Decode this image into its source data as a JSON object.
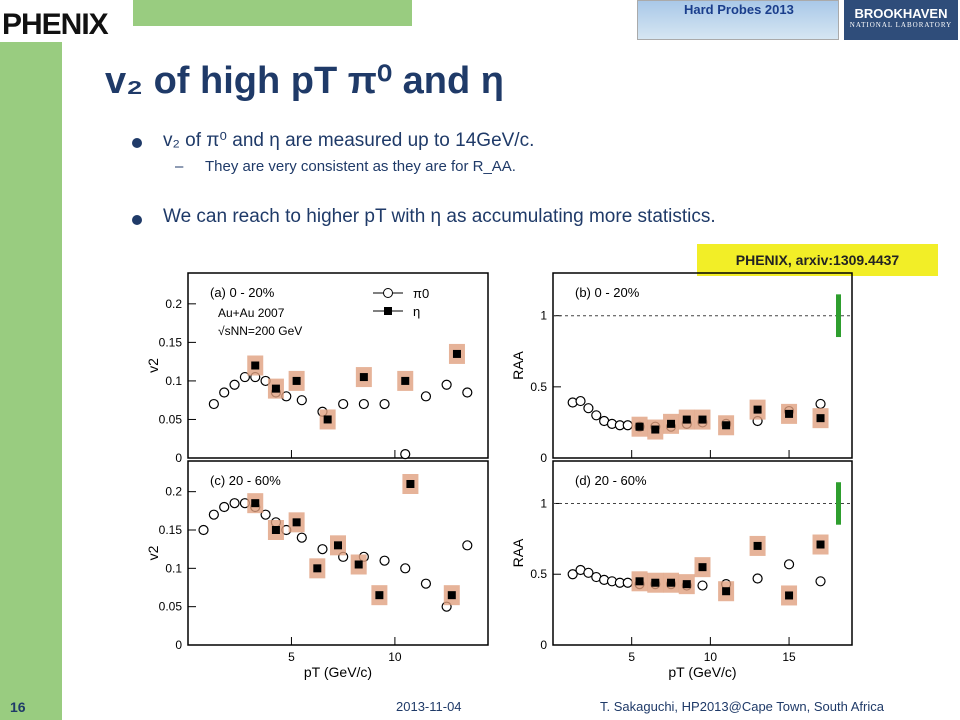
{
  "header": {
    "logo_text": "PHENIX",
    "conference_logo": "Hard Probes 2013",
    "lab_logo_line1": "BROOKHAVEN",
    "lab_logo_line2": "NATIONAL LABORATORY"
  },
  "slide": {
    "title_text": "v₂ of high pT π⁰ and η",
    "bullet1": "v₂ of π⁰ and η are measured up to 14GeV/c.",
    "sub_bullet1": "They are very consistent as they are for R_AA.",
    "bullet2": "We can reach to higher pT with η as accumulating more statistics.",
    "reference": "PHENIX, arxiv:1309.4437"
  },
  "footer": {
    "page": "16",
    "date": "2013-11-04",
    "author": "T. Sakaguchi, HP2013@Cape Town, South Africa"
  },
  "chart_data": [
    {
      "type": "scatter",
      "panel": "(a)",
      "centrality": "0 - 20%",
      "system": "Au+Au 2007",
      "energy": "√sNN=200 GeV",
      "xlabel": "pT (GeV/c)",
      "ylabel": "v2",
      "xlim": [
        0,
        14.5
      ],
      "ylim": [
        0,
        0.24
      ],
      "yticks": [
        0,
        0.05,
        0.1,
        0.15,
        0.2
      ],
      "ytick_labels": [
        "0",
        "0.05",
        "0.1",
        "0.15",
        "0.2"
      ],
      "xticks": [
        5,
        10
      ],
      "series": [
        {
          "name": "π0",
          "marker": "open-circle",
          "x": [
            1.25,
            1.75,
            2.25,
            2.75,
            3.25,
            3.75,
            4.25,
            4.75,
            5.5,
            6.5,
            7.5,
            8.5,
            9.5,
            10.5,
            11.5,
            12.5,
            13.5
          ],
          "y": [
            0.07,
            0.085,
            0.095,
            0.105,
            0.105,
            0.1,
            0.085,
            0.08,
            0.075,
            0.06,
            0.07,
            0.07,
            0.07,
            0.005,
            0.08,
            0.095,
            0.085
          ]
        },
        {
          "name": "η",
          "marker": "filled-square",
          "x": [
            3.25,
            4.25,
            5.25,
            6.75,
            8.5,
            10.5,
            13.0
          ],
          "y": [
            0.12,
            0.09,
            0.1,
            0.05,
            0.105,
            0.1,
            0.135
          ]
        }
      ]
    },
    {
      "type": "scatter",
      "panel": "(b)",
      "centrality": "0 - 20%",
      "xlabel": "pT (GeV/c)",
      "ylabel": "RAA",
      "xlim": [
        0,
        19
      ],
      "ylim": [
        0,
        1.3
      ],
      "yticks": [
        0,
        0.5,
        1
      ],
      "ytick_labels": [
        "0",
        "0.5",
        "1"
      ],
      "xticks": [
        5,
        10,
        15
      ],
      "series": [
        {
          "name": "π0",
          "marker": "open-circle",
          "x": [
            1.25,
            1.75,
            2.25,
            2.75,
            3.25,
            3.75,
            4.25,
            4.75,
            5.5,
            6.5,
            7.5,
            8.5,
            9.5,
            11.0,
            13.0,
            15.0,
            17.0
          ],
          "y": [
            0.39,
            0.4,
            0.35,
            0.3,
            0.26,
            0.24,
            0.23,
            0.23,
            0.22,
            0.22,
            0.22,
            0.24,
            0.25,
            0.24,
            0.26,
            0.33,
            0.38
          ]
        },
        {
          "name": "η",
          "marker": "filled-square",
          "x": [
            5.5,
            6.5,
            7.5,
            8.5,
            9.5,
            11.0,
            13.0,
            15.0,
            17.0
          ],
          "y": [
            0.22,
            0.2,
            0.24,
            0.27,
            0.27,
            0.23,
            0.34,
            0.31,
            0.28
          ]
        }
      ]
    },
    {
      "type": "scatter",
      "panel": "(c)",
      "centrality": "20 - 60%",
      "xlabel": "pT (GeV/c)",
      "ylabel": "v2",
      "xlim": [
        0,
        14.5
      ],
      "ylim": [
        0,
        0.24
      ],
      "yticks": [
        0,
        0.05,
        0.1,
        0.15,
        0.2
      ],
      "ytick_labels": [
        "0",
        "0.05",
        "0.1",
        "0.15",
        "0.2"
      ],
      "xticks": [
        5,
        10
      ],
      "series": [
        {
          "name": "π0",
          "marker": "open-circle",
          "x": [
            0.75,
            1.25,
            1.75,
            2.25,
            2.75,
            3.25,
            3.75,
            4.25,
            4.75,
            5.5,
            6.5,
            7.5,
            8.5,
            9.5,
            10.5,
            11.5,
            12.5,
            13.5
          ],
          "y": [
            0.15,
            0.17,
            0.18,
            0.185,
            0.185,
            0.18,
            0.17,
            0.16,
            0.15,
            0.14,
            0.125,
            0.115,
            0.115,
            0.11,
            0.1,
            0.08,
            0.05,
            0.13
          ]
        },
        {
          "name": "η",
          "marker": "filled-square",
          "x": [
            3.25,
            4.25,
            5.25,
            6.25,
            7.25,
            8.25,
            9.25,
            10.75,
            12.75
          ],
          "y": [
            0.185,
            0.15,
            0.16,
            0.1,
            0.13,
            0.105,
            0.065,
            0.21,
            0.065
          ]
        }
      ]
    },
    {
      "type": "scatter",
      "panel": "(d)",
      "centrality": "20 - 60%",
      "xlabel": "pT (GeV/c)",
      "ylabel": "RAA",
      "xlim": [
        0,
        19
      ],
      "ylim": [
        0,
        1.3
      ],
      "yticks": [
        0,
        0.5,
        1
      ],
      "ytick_labels": [
        "0",
        "0.5",
        "1"
      ],
      "xticks": [
        5,
        10,
        15
      ],
      "series": [
        {
          "name": "π0",
          "marker": "open-circle",
          "x": [
            1.25,
            1.75,
            2.25,
            2.75,
            3.25,
            3.75,
            4.25,
            4.75,
            5.5,
            6.5,
            7.5,
            8.5,
            9.5,
            11.0,
            13.0,
            15.0,
            17.0
          ],
          "y": [
            0.5,
            0.53,
            0.51,
            0.48,
            0.46,
            0.45,
            0.44,
            0.44,
            0.43,
            0.43,
            0.43,
            0.42,
            0.42,
            0.43,
            0.47,
            0.57,
            0.45
          ]
        },
        {
          "name": "η",
          "marker": "filled-square",
          "x": [
            5.5,
            6.5,
            7.5,
            8.5,
            9.5,
            11.0,
            13.0,
            15.0,
            17.0
          ],
          "y": [
            0.45,
            0.44,
            0.44,
            0.43,
            0.55,
            0.38,
            0.7,
            0.35,
            0.71
          ]
        }
      ]
    }
  ]
}
